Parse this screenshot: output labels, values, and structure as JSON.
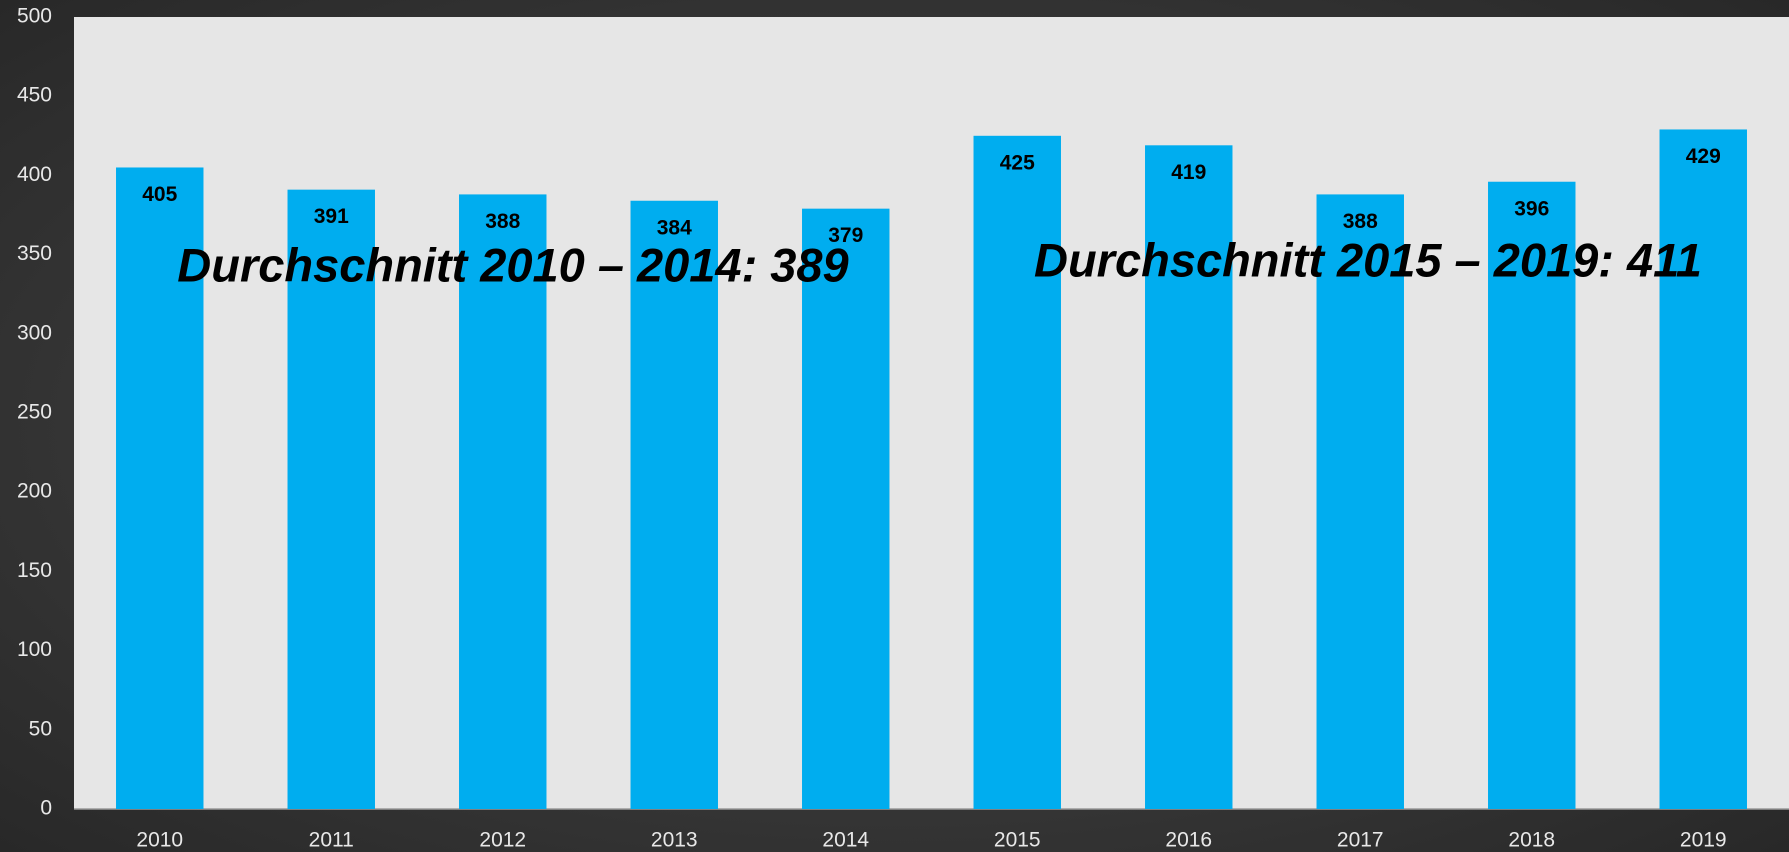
{
  "chart_data": {
    "type": "bar",
    "categories": [
      "2010",
      "2011",
      "2012",
      "2013",
      "2014",
      "2015",
      "2016",
      "2017",
      "2018",
      "2019"
    ],
    "values": [
      405,
      391,
      388,
      384,
      379,
      425,
      419,
      388,
      396,
      429
    ],
    "color": "#00adef",
    "ylim": [
      0,
      500
    ],
    "yticks": [
      0,
      50,
      100,
      150,
      200,
      250,
      300,
      350,
      400,
      450,
      500
    ],
    "grid": false,
    "annotations": [
      "Durchschnitt 2010 – 2014: 389",
      "Durchschnitt 2015 – 2019: 411"
    ]
  }
}
